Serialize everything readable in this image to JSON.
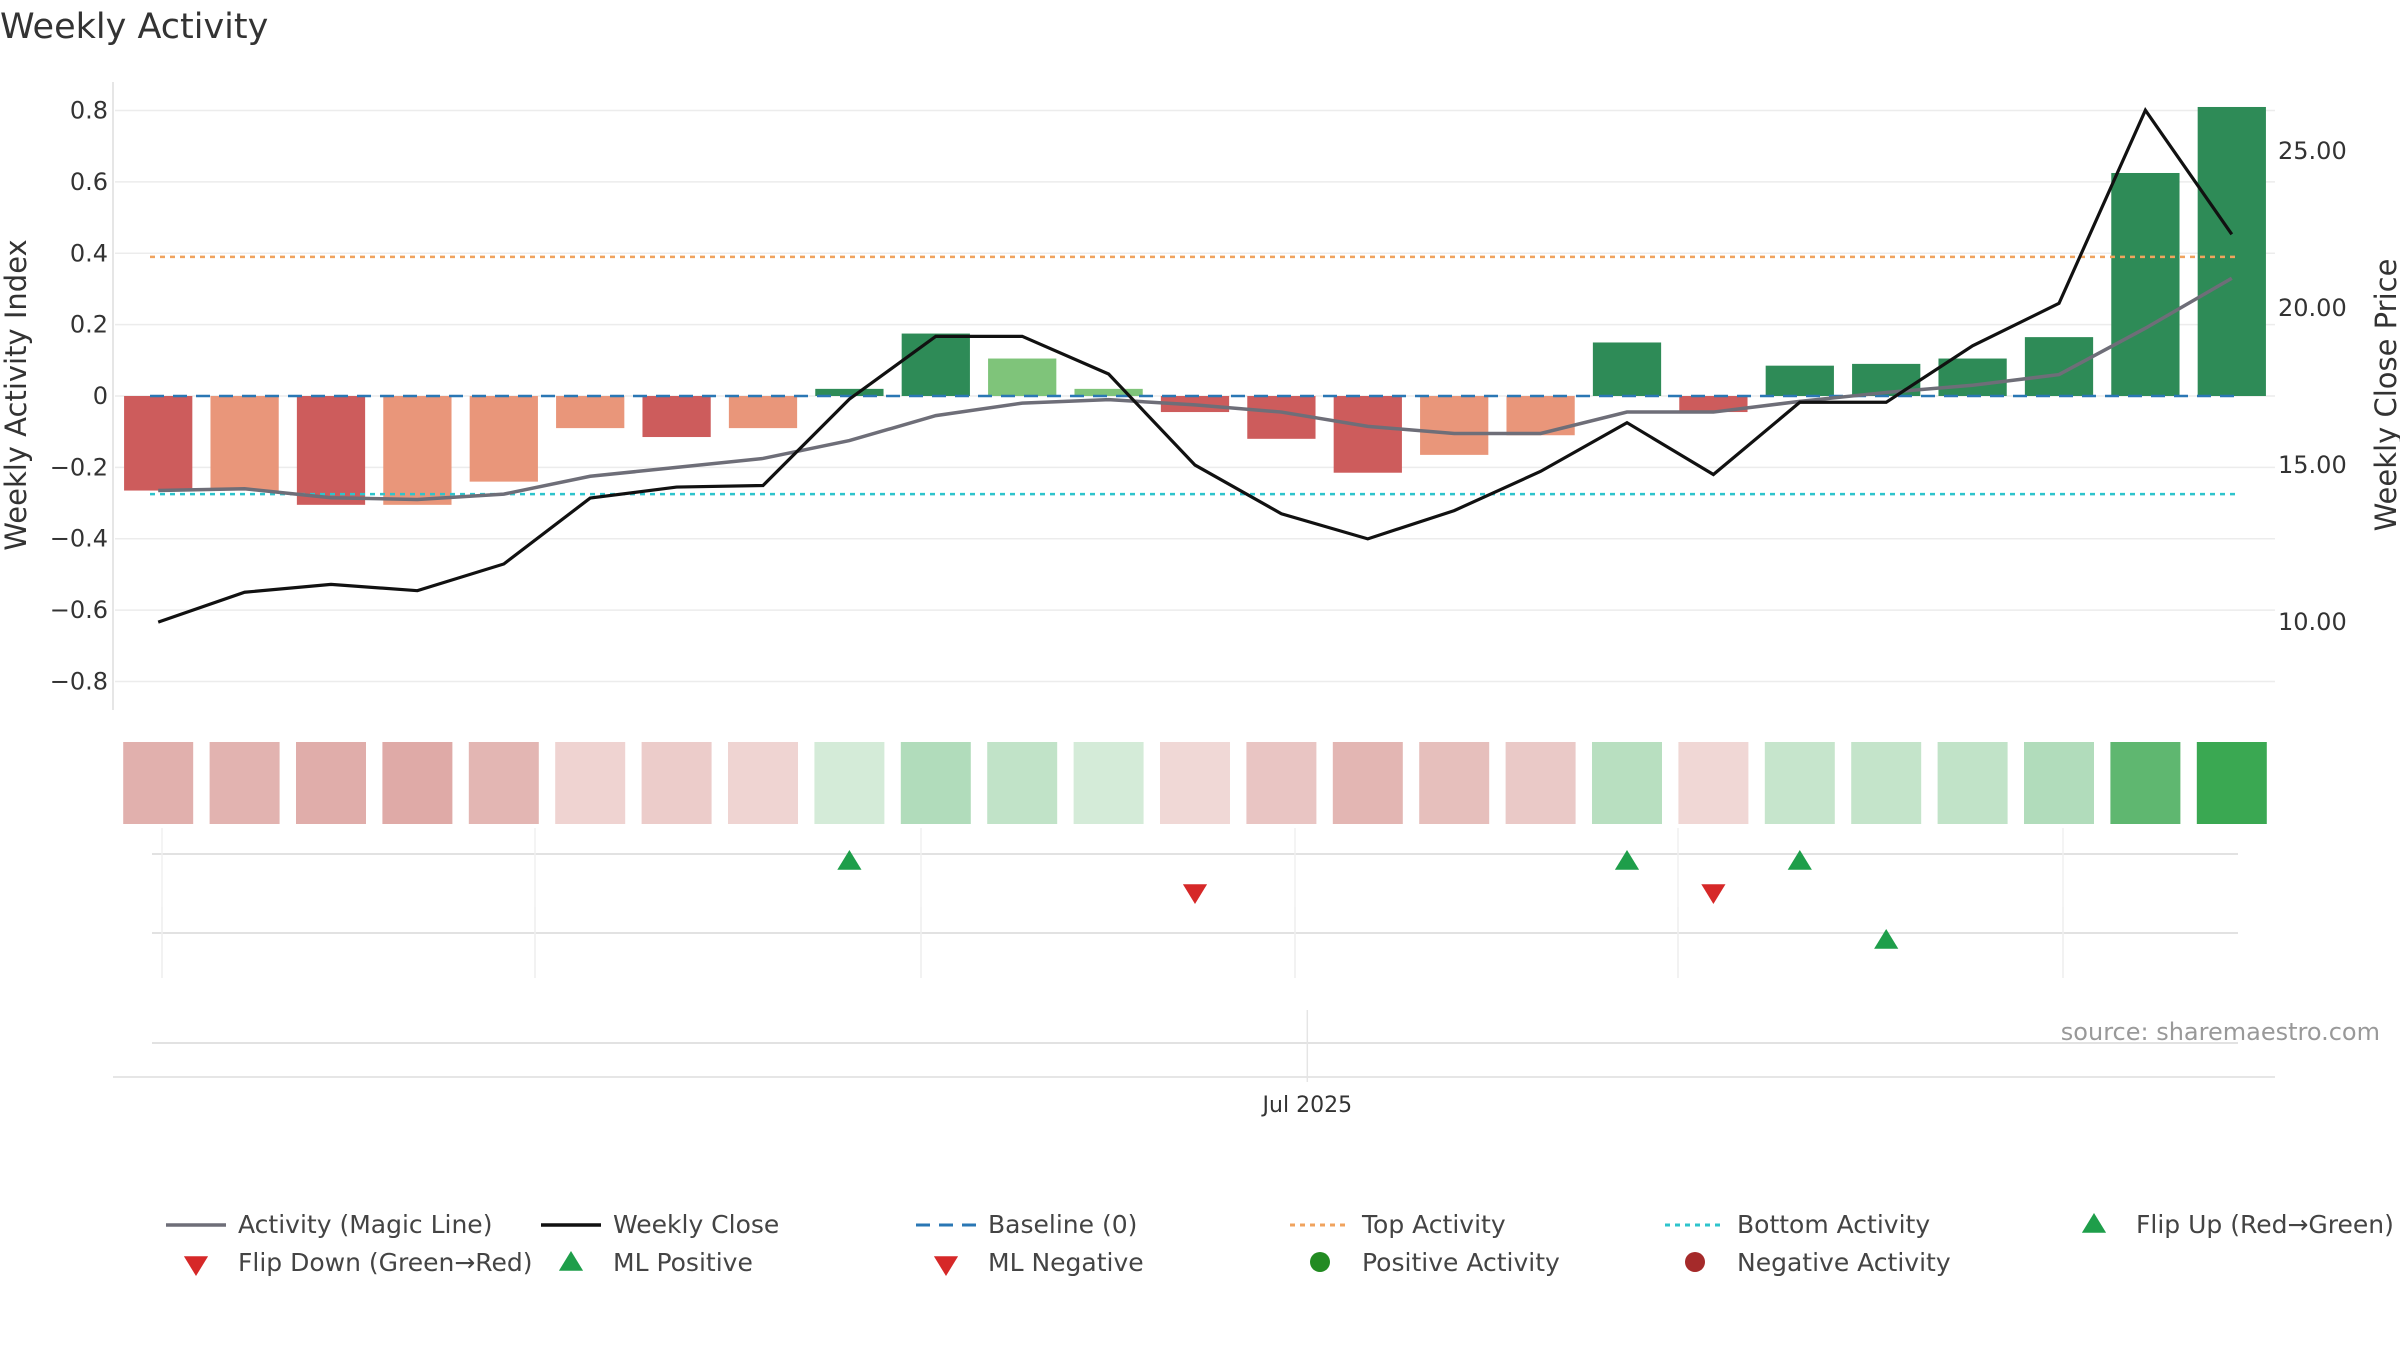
{
  "chart_data": {
    "type": "bar",
    "title": "Weekly Activity",
    "ylabel": "Weekly Activity Index",
    "y2label": "Weekly Close Price",
    "ylim": [
      -0.88,
      0.88
    ],
    "y2lim": [
      7.2,
      27.2
    ],
    "yticks": [
      0.8,
      0.6,
      0.4,
      0.2,
      0,
      -0.2,
      -0.4,
      -0.6,
      -0.8
    ],
    "yticklabels": [
      "0.8",
      "0.6",
      "0.4",
      "0.2",
      "0",
      "−0.2",
      "−0.4",
      "−0.6",
      "−0.8"
    ],
    "y2ticks": [
      25,
      20,
      15,
      10
    ],
    "y2ticklabels": [
      "25.00",
      "20.00",
      "15.00",
      "10.00"
    ],
    "xtick_label": "Jul 2025",
    "xtick_index": 13.3,
    "source": "source: sharemaestro.com",
    "weeks": 25,
    "activity": [
      -0.265,
      -0.265,
      -0.305,
      -0.305,
      -0.24,
      -0.09,
      -0.115,
      -0.09,
      0.02,
      0.175,
      0.105,
      0.02,
      -0.045,
      -0.12,
      -0.215,
      -0.165,
      -0.11,
      0.15,
      -0.045,
      0.085,
      0.09,
      0.105,
      0.165,
      0.625,
      0.81
    ],
    "bar_colors": [
      "#cd5c5c",
      "#e9967a",
      "#cd5c5c",
      "#e9967a",
      "#e9967a",
      "#e9967a",
      "#cd5c5c",
      "#e9967a",
      "#2e8b57",
      "#2e8b57",
      "#7fc47a",
      "#7fc47a",
      "#cd5c5c",
      "#cd5c5c",
      "#cd5c5c",
      "#e9967a",
      "#e9967a",
      "#2e8b57",
      "#cd5c5c",
      "#2e8b57",
      "#2e8b57",
      "#2e8b57",
      "#2e8b57",
      "#2e8b57",
      "#2e8b57"
    ],
    "magic_line": [
      -0.265,
      -0.26,
      -0.285,
      -0.29,
      -0.275,
      -0.225,
      -0.2,
      -0.175,
      -0.125,
      -0.055,
      -0.02,
      -0.01,
      -0.025,
      -0.045,
      -0.085,
      -0.105,
      -0.105,
      -0.045,
      -0.045,
      -0.015,
      0.01,
      0.03,
      0.06,
      0.19,
      0.33
    ],
    "weekly_close": [
      10.0,
      10.95,
      11.2,
      11.0,
      11.85,
      13.95,
      14.3,
      14.35,
      17.1,
      19.1,
      19.1,
      17.9,
      15.0,
      13.45,
      12.65,
      13.55,
      14.8,
      16.35,
      14.7,
      17.0,
      17.0,
      18.8,
      20.15,
      26.3,
      22.35
    ],
    "baseline": 0,
    "top_activity": 0.39,
    "bottom_activity": -0.275,
    "heat_colors": [
      "#e1b0ad",
      "#e2b3b0",
      "#e0adaa",
      "#dfaaa7",
      "#e3b6b3",
      "#efd3d1",
      "#ecccca",
      "#efd4d2",
      "#d4ebd8",
      "#b1dcbb",
      "#c1e3c8",
      "#d4ebd8",
      "#f0d8d6",
      "#e9c5c3",
      "#e3b6b3",
      "#e6bfbc",
      "#eac9c7",
      "#b8dfc0",
      "#f0d7d5",
      "#c6e5cc",
      "#c4e4ca",
      "#c1e3c8",
      "#b1dcbb",
      "#5fb770",
      "#3aa852"
    ],
    "flip_up": [
      8,
      17,
      19
    ],
    "flip_down": [
      12,
      18
    ],
    "ml_positive": [
      20
    ],
    "ml_negative": [],
    "colors": {
      "magic_line": "#6e6e78",
      "weekly_close": "#111111",
      "baseline": "#2a77b4",
      "top_activity": "#f0a35e",
      "bottom_activity": "#2ec4cc",
      "flip_up": "#1e9e4a",
      "flip_down": "#d62828",
      "positive_activity": "#228b22",
      "negative_activity": "#a52a2a"
    },
    "legend_position": "bottom",
    "legend": [
      {
        "label": "Activity (Magic Line)",
        "kind": "line",
        "color": "#6e6e78"
      },
      {
        "label": "Weekly Close",
        "kind": "line",
        "color": "#111111"
      },
      {
        "label": "Baseline (0)",
        "kind": "dashed",
        "color": "#2a77b4"
      },
      {
        "label": "Top Activity",
        "kind": "dotted",
        "color": "#f0a35e"
      },
      {
        "label": "Bottom Activity",
        "kind": "dotted",
        "color": "#2ec4cc"
      },
      {
        "label": "Flip Up (Red→Green)",
        "kind": "tri-up",
        "color": "#1e9e4a"
      },
      {
        "label": "Flip Down (Green→Red)",
        "kind": "tri-down",
        "color": "#d62828"
      },
      {
        "label": "ML Positive",
        "kind": "tri-up",
        "color": "#1e9e4a"
      },
      {
        "label": "ML Negative",
        "kind": "tri-down",
        "color": "#d62828"
      },
      {
        "label": "Positive Activity",
        "kind": "dot",
        "color": "#228b22"
      },
      {
        "label": "Negative Activity",
        "kind": "dot",
        "color": "#a52a2a"
      }
    ]
  }
}
